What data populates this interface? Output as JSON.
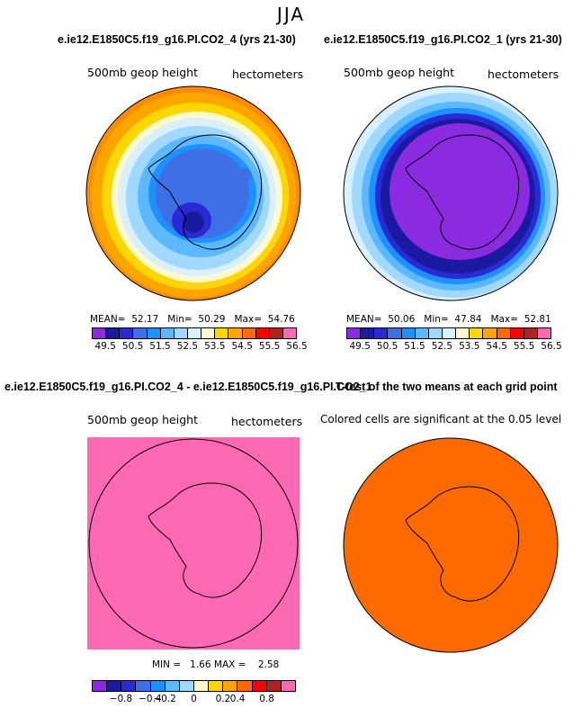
{
  "season": "JJA",
  "panels": {
    "top_left": {
      "title": "e.ie12.E1850C5.f19_g16.PI.CO2_4 (yrs 21-30)",
      "field_label": "500mb geop height",
      "units_label": "hectometers",
      "stats": {
        "mean_label": "MEAN=",
        "mean": "52.17",
        "min_label": "Min=",
        "min": "50.29",
        "max_label": "Max=",
        "max": "54.76"
      }
    },
    "top_right": {
      "title": "e.ie12.E1850C5.f19_g16.PI.CO2_1 (yrs 21-30)",
      "field_label": "500mb geop height",
      "units_label": "hectometers",
      "stats": {
        "mean_label": "MEAN=",
        "mean": "50.06",
        "min_label": "Min=",
        "min": "47.84",
        "max_label": "Max=",
        "max": "52.81"
      }
    },
    "bottom_left": {
      "title": "e.ie12.E1850C5.f19_g16.PI.CO2_4 - e.ie12.E1850C5.f19_g16.PI.CO2_1",
      "field_label": "500mb geop height",
      "units_label": "hectometers",
      "stats": {
        "min_label": "MIN =",
        "min": "1.66",
        "max_label": "MAX =",
        "max": "2.58"
      }
    },
    "bottom_right": {
      "title": "T-test of the two means at each grid point",
      "subtitle": "Colored cells are significant at the 0.05 level"
    }
  },
  "colorbars": {
    "abs": {
      "colors": [
        "#8a2be2",
        "#1a1aa0",
        "#2929d6",
        "#3f6fe6",
        "#1e90ff",
        "#5cb8ff",
        "#a0d8ff",
        "#d8f0ff",
        "#fffacd",
        "#ffd700",
        "#ffa500",
        "#ff6a00",
        "#ff0000",
        "#b22222",
        "#ff69b4"
      ],
      "ticks": [
        "49.5",
        "50.5",
        "51.5",
        "52.5",
        "53.5",
        "54.5",
        "55.5",
        "56.5"
      ]
    },
    "diff": {
      "colors": [
        "#8a2be2",
        "#1a1aa0",
        "#2929d6",
        "#3f6fe6",
        "#1e90ff",
        "#5cb8ff",
        "#a0d8ff",
        "#fffacd",
        "#ffd700",
        "#ffa500",
        "#ff6a00",
        "#ff0000",
        "#b22222",
        "#ff69b4"
      ],
      "ticks": [
        "−0.8",
        "−0.4",
        "−0.2",
        "0",
        "0.2",
        "0.4",
        "0.8"
      ]
    }
  },
  "chart_data": [
    {
      "type": "heatmap",
      "title": "e.ie12.E1850C5.f19_g16.PI.CO2_4 (yrs 21-30)",
      "variable": "500mb geop height",
      "units": "hectometers",
      "mean": 52.17,
      "min": 50.29,
      "max": 54.76,
      "levels": [
        49.5,
        50,
        50.5,
        51,
        51.5,
        52,
        52.5,
        53,
        53.5,
        54,
        54.5,
        55,
        55.5,
        56,
        56.5
      ]
    },
    {
      "type": "heatmap",
      "title": "e.ie12.E1850C5.f19_g16.PI.CO2_1 (yrs 21-30)",
      "variable": "500mb geop height",
      "units": "hectometers",
      "mean": 50.06,
      "min": 47.84,
      "max": 52.81,
      "levels": [
        49.5,
        50,
        50.5,
        51,
        51.5,
        52,
        52.5,
        53,
        53.5,
        54,
        54.5,
        55,
        55.5,
        56,
        56.5
      ]
    },
    {
      "type": "heatmap",
      "title": "e.ie12.E1850C5.f19_g16.PI.CO2_4 - e.ie12.E1850C5.f19_g16.PI.CO2_1",
      "variable": "500mb geop height",
      "units": "hectometers",
      "min": 1.66,
      "max": 2.58,
      "levels": [
        -0.8,
        -0.6,
        -0.4,
        -0.3,
        -0.2,
        -0.1,
        0,
        0.1,
        0.2,
        0.3,
        0.4,
        0.6,
        0.8
      ]
    },
    {
      "type": "heatmap",
      "title": "T-test of the two means at each grid point",
      "note": "Colored cells are significant at the 0.05 level"
    }
  ]
}
